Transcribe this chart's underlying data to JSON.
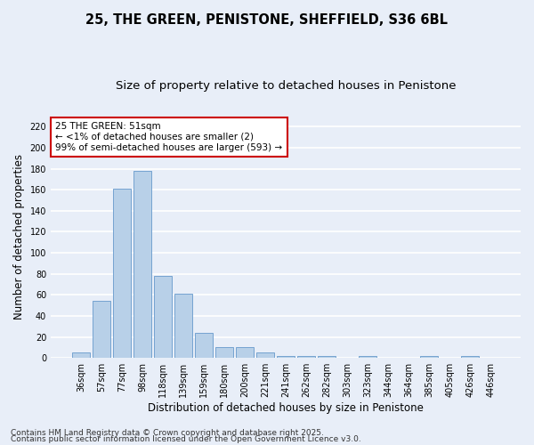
{
  "title_line1": "25, THE GREEN, PENISTONE, SHEFFIELD, S36 6BL",
  "title_line2": "Size of property relative to detached houses in Penistone",
  "xlabel": "Distribution of detached houses by size in Penistone",
  "ylabel": "Number of detached properties",
  "categories": [
    "36sqm",
    "57sqm",
    "77sqm",
    "98sqm",
    "118sqm",
    "139sqm",
    "159sqm",
    "180sqm",
    "200sqm",
    "221sqm",
    "241sqm",
    "262sqm",
    "282sqm",
    "303sqm",
    "323sqm",
    "344sqm",
    "364sqm",
    "385sqm",
    "405sqm",
    "426sqm",
    "446sqm"
  ],
  "values": [
    5,
    54,
    161,
    178,
    78,
    61,
    24,
    10,
    10,
    5,
    2,
    2,
    2,
    0,
    2,
    0,
    0,
    2,
    0,
    2,
    0
  ],
  "bar_color": "#b8d0e8",
  "bar_edge_color": "#6699cc",
  "ylim": [
    0,
    230
  ],
  "yticks": [
    0,
    20,
    40,
    60,
    80,
    100,
    120,
    140,
    160,
    180,
    200,
    220
  ],
  "annotation_text": "25 THE GREEN: 51sqm\n← <1% of detached houses are smaller (2)\n99% of semi-detached houses are larger (593) →",
  "annotation_box_color": "#ffffff",
  "annotation_box_edge": "#cc0000",
  "footer_line1": "Contains HM Land Registry data © Crown copyright and database right 2025.",
  "footer_line2": "Contains public sector information licensed under the Open Government Licence v3.0.",
  "background_color": "#e8eef8",
  "plot_bg_color": "#e8eef8",
  "grid_color": "#ffffff",
  "title_fontsize": 10.5,
  "subtitle_fontsize": 9.5,
  "axis_label_fontsize": 8.5,
  "tick_fontsize": 7,
  "annotation_fontsize": 7.5,
  "footer_fontsize": 6.5
}
